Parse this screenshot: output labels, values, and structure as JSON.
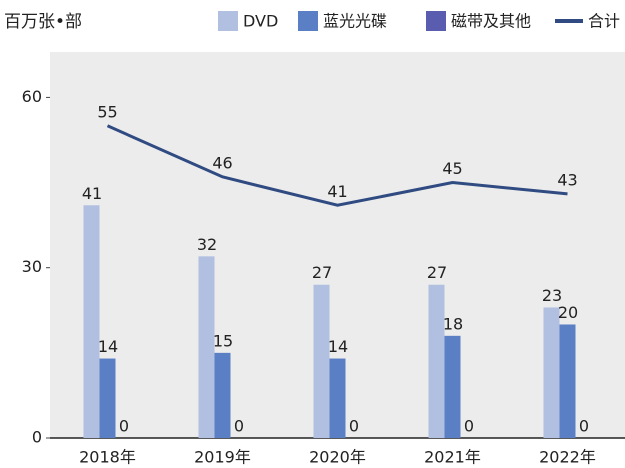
{
  "chart_data": {
    "type": "bar",
    "y_label": "百万张•部",
    "categories": [
      "2018年",
      "2019年",
      "2020年",
      "2021年",
      "2022年"
    ],
    "series": [
      {
        "name": "DVD",
        "color": "#b1c0e0",
        "values": [
          41,
          32,
          27,
          27,
          23
        ]
      },
      {
        "name": "蓝光光碟",
        "color": "#5b7fc4",
        "values": [
          14,
          15,
          14,
          18,
          20
        ]
      },
      {
        "name": "磁带及其他",
        "color": "#5a5cb0",
        "values": [
          0,
          0,
          0,
          0,
          0
        ]
      },
      {
        "name": "合计",
        "color": "#2f4b82",
        "type": "line",
        "values": [
          55,
          46,
          41,
          45,
          43
        ]
      }
    ],
    "ylim": [
      0,
      68
    ],
    "yticks": [
      0,
      30,
      60
    ]
  }
}
